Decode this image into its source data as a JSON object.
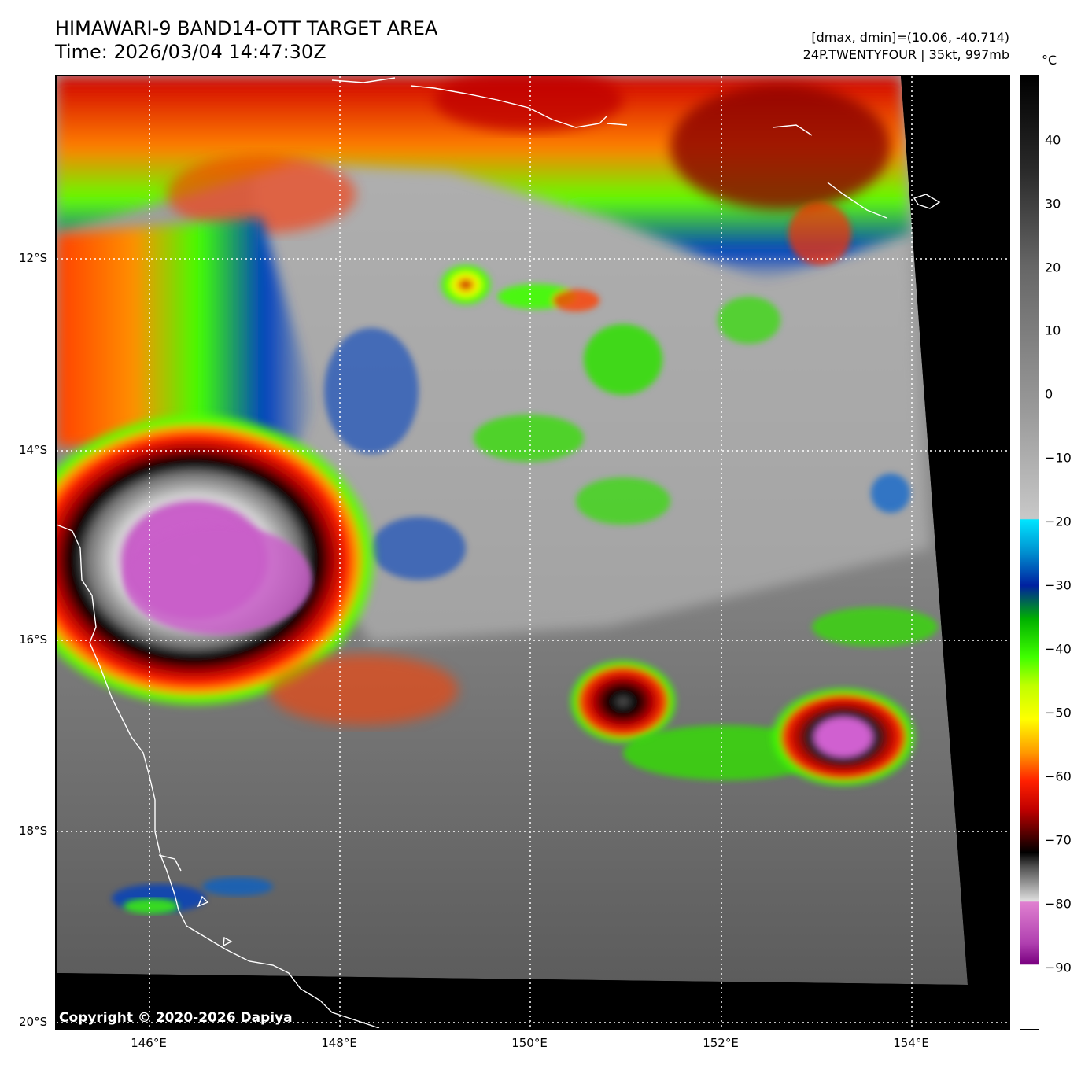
{
  "header": {
    "title": "HIMAWARI-9 BAND14-OTT TARGET AREA",
    "time": "Time: 2026/03/04 14:47:30Z",
    "range": "[dmax, dmin]=(10.06, -40.714)",
    "storm": "24P.TWENTYFOUR | 35kt, 997mb"
  },
  "map": {
    "lat_labels": [
      "12°S",
      "14°S",
      "16°S",
      "18°S",
      "20°S"
    ],
    "lon_labels": [
      "146°E",
      "148°E",
      "150°E",
      "152°E",
      "154°E"
    ],
    "copyright": "Copyright © 2020-2026 Dapiya"
  },
  "colorbar": {
    "unit": "°C",
    "ticks": [
      "40",
      "30",
      "20",
      "10",
      "0",
      "−10",
      "−20",
      "−30",
      "−40",
      "−50",
      "−60",
      "−70",
      "−80",
      "−90"
    ]
  }
}
